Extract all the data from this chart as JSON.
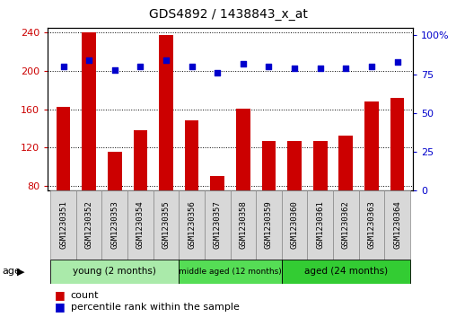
{
  "title": "GDS4892 / 1438843_x_at",
  "samples": [
    "GSM1230351",
    "GSM1230352",
    "GSM1230353",
    "GSM1230354",
    "GSM1230355",
    "GSM1230356",
    "GSM1230357",
    "GSM1230358",
    "GSM1230359",
    "GSM1230360",
    "GSM1230361",
    "GSM1230362",
    "GSM1230363",
    "GSM1230364"
  ],
  "counts": [
    162,
    240,
    116,
    138,
    237,
    148,
    90,
    161,
    127,
    127,
    127,
    132,
    168,
    172
  ],
  "percentiles": [
    80,
    84,
    78,
    80,
    84,
    80,
    76,
    82,
    80,
    79,
    79,
    79,
    80,
    83
  ],
  "ylim_left": [
    75,
    245
  ],
  "yticks_left": [
    80,
    120,
    160,
    200,
    240
  ],
  "ylim_right": [
    0,
    105
  ],
  "yticks_right": [
    0,
    25,
    50,
    75,
    100
  ],
  "bar_color": "#cc0000",
  "dot_color": "#0000cc",
  "groups": [
    {
      "label": "young (2 months)",
      "start": 0,
      "end": 5,
      "color": "#aaeaaa"
    },
    {
      "label": "middle aged (12 months)",
      "start": 5,
      "end": 9,
      "color": "#55dd55"
    },
    {
      "label": "aged (24 months)",
      "start": 9,
      "end": 14,
      "color": "#33cc33"
    }
  ],
  "group_row_label": "age",
  "legend_count_label": "count",
  "legend_pct_label": "percentile rank within the sample",
  "bar_width": 0.55,
  "grid_color": "black",
  "tick_label_fontsize": 6.5,
  "title_fontsize": 10,
  "axis_label_color_left": "#cc0000",
  "axis_label_color_right": "#0000cc",
  "sample_box_color": "#d8d8d8",
  "sample_box_edge": "#888888"
}
